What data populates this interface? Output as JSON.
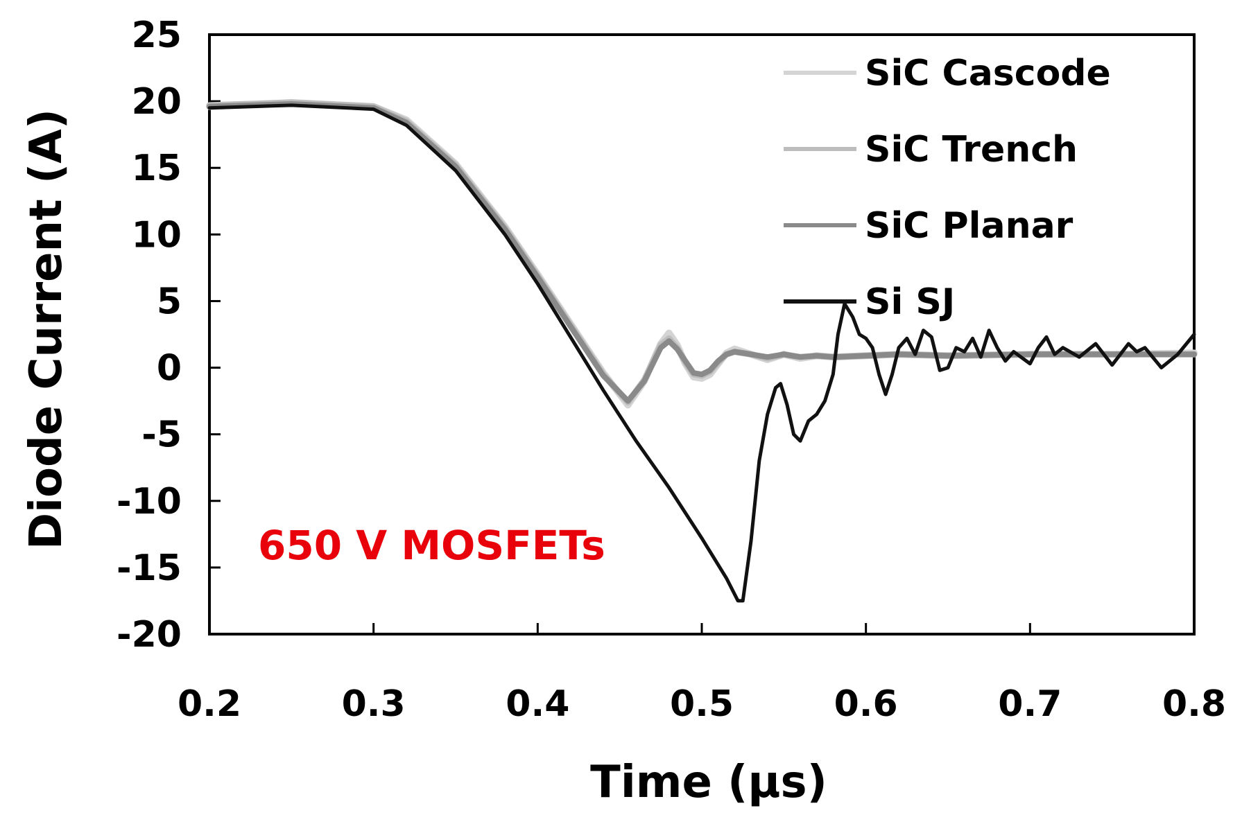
{
  "chart_data": {
    "type": "line",
    "title": "",
    "xlabel": "Time (μs)",
    "ylabel": "Diode Current (A)",
    "xlim": [
      0.2,
      0.8
    ],
    "ylim": [
      -20,
      25
    ],
    "xticks": [
      0.2,
      0.3,
      0.4,
      0.5,
      0.6,
      0.7,
      0.8
    ],
    "xtick_labels": [
      "0.2",
      "0.3",
      "0.4",
      "0.5",
      "0.6",
      "0.7",
      "0.8"
    ],
    "yticks": [
      -20,
      -15,
      -10,
      -5,
      0,
      5,
      10,
      15,
      20,
      25
    ],
    "ytick_labels": [
      "-20",
      "-15",
      "-10",
      "-5",
      "0",
      "5",
      "10",
      "15",
      "20",
      "25"
    ],
    "grid": false,
    "legend_position": "top-right",
    "annotation": {
      "text": "650 V MOSFETs",
      "color": "#e8000b"
    },
    "series": [
      {
        "name": "SiC Cascode",
        "color": "#d4d4d4",
        "x": [
          0.2,
          0.25,
          0.3,
          0.32,
          0.35,
          0.38,
          0.4,
          0.42,
          0.44,
          0.455,
          0.465,
          0.475,
          0.48,
          0.485,
          0.49,
          0.495,
          0.5,
          0.505,
          0.51,
          0.515,
          0.52,
          0.53,
          0.54,
          0.55,
          0.56,
          0.57,
          0.58,
          0.6,
          0.62,
          0.65,
          0.7,
          0.75,
          0.8
        ],
        "values": [
          19.6,
          19.9,
          19.6,
          18.6,
          15.3,
          10.6,
          7.0,
          3.3,
          -0.4,
          -2.8,
          -1.0,
          1.8,
          2.6,
          1.7,
          0.3,
          -0.7,
          -0.8,
          -0.5,
          0.3,
          1.1,
          1.4,
          1.0,
          0.6,
          1.0,
          0.7,
          0.9,
          0.8,
          0.9,
          1.0,
          0.9,
          1.0,
          1.0,
          1.1
        ]
      },
      {
        "name": "SiC Trench",
        "color": "#bdbdbd",
        "x": [
          0.2,
          0.25,
          0.3,
          0.32,
          0.35,
          0.38,
          0.4,
          0.42,
          0.44,
          0.455,
          0.465,
          0.475,
          0.48,
          0.485,
          0.49,
          0.495,
          0.5,
          0.505,
          0.51,
          0.515,
          0.52,
          0.53,
          0.54,
          0.55,
          0.56,
          0.57,
          0.58,
          0.6,
          0.62,
          0.65,
          0.7,
          0.75,
          0.8
        ],
        "values": [
          19.7,
          19.9,
          19.6,
          18.5,
          15.2,
          10.5,
          6.9,
          3.2,
          -0.5,
          -2.6,
          -0.9,
          1.7,
          2.2,
          1.5,
          0.4,
          -0.5,
          -0.6,
          -0.3,
          0.4,
          1.0,
          1.2,
          1.0,
          0.7,
          1.0,
          0.8,
          0.9,
          0.8,
          0.9,
          1.0,
          0.9,
          1.0,
          1.0,
          1.0
        ]
      },
      {
        "name": "SiC Planar",
        "color": "#8a8a8a",
        "x": [
          0.2,
          0.25,
          0.3,
          0.32,
          0.35,
          0.38,
          0.4,
          0.42,
          0.44,
          0.455,
          0.465,
          0.475,
          0.48,
          0.485,
          0.49,
          0.495,
          0.5,
          0.505,
          0.51,
          0.515,
          0.52,
          0.53,
          0.54,
          0.55,
          0.56,
          0.57,
          0.58,
          0.6,
          0.62,
          0.65,
          0.7,
          0.75,
          0.8
        ],
        "values": [
          19.6,
          19.8,
          19.5,
          18.4,
          15.1,
          10.4,
          6.8,
          3.1,
          -0.6,
          -2.5,
          -1.0,
          1.5,
          2.0,
          1.4,
          0.5,
          -0.4,
          -0.5,
          -0.2,
          0.5,
          1.0,
          1.2,
          1.0,
          0.8,
          1.0,
          0.8,
          0.9,
          0.8,
          0.9,
          1.0,
          0.9,
          1.0,
          1.0,
          1.0
        ]
      },
      {
        "name": "Si SJ",
        "color": "#111111",
        "x": [
          0.2,
          0.25,
          0.3,
          0.32,
          0.35,
          0.38,
          0.4,
          0.42,
          0.44,
          0.46,
          0.48,
          0.5,
          0.515,
          0.522,
          0.525,
          0.53,
          0.535,
          0.54,
          0.545,
          0.548,
          0.552,
          0.556,
          0.56,
          0.565,
          0.57,
          0.575,
          0.58,
          0.583,
          0.587,
          0.592,
          0.596,
          0.6,
          0.604,
          0.608,
          0.612,
          0.616,
          0.62,
          0.625,
          0.63,
          0.635,
          0.64,
          0.645,
          0.65,
          0.655,
          0.66,
          0.665,
          0.67,
          0.675,
          0.68,
          0.685,
          0.69,
          0.7,
          0.705,
          0.71,
          0.715,
          0.72,
          0.73,
          0.74,
          0.75,
          0.76,
          0.765,
          0.77,
          0.78,
          0.79,
          0.8
        ],
        "values": [
          19.5,
          19.7,
          19.4,
          18.2,
          14.8,
          10.0,
          6.3,
          2.3,
          -1.7,
          -5.5,
          -9.0,
          -12.8,
          -15.8,
          -17.5,
          -17.5,
          -13.0,
          -7.0,
          -3.5,
          -1.5,
          -1.2,
          -2.8,
          -5.0,
          -5.5,
          -4.0,
          -3.5,
          -2.5,
          -0.5,
          2.5,
          4.8,
          3.8,
          2.5,
          2.2,
          1.5,
          -0.5,
          -2.0,
          -0.5,
          1.5,
          2.2,
          1.0,
          2.8,
          2.3,
          -0.2,
          0.0,
          1.5,
          1.2,
          2.2,
          0.8,
          2.8,
          1.5,
          0.5,
          1.2,
          0.3,
          1.5,
          2.3,
          1.0,
          1.5,
          0.8,
          1.8,
          0.2,
          1.8,
          1.2,
          1.5,
          0.0,
          1.0,
          2.5
        ]
      }
    ]
  }
}
